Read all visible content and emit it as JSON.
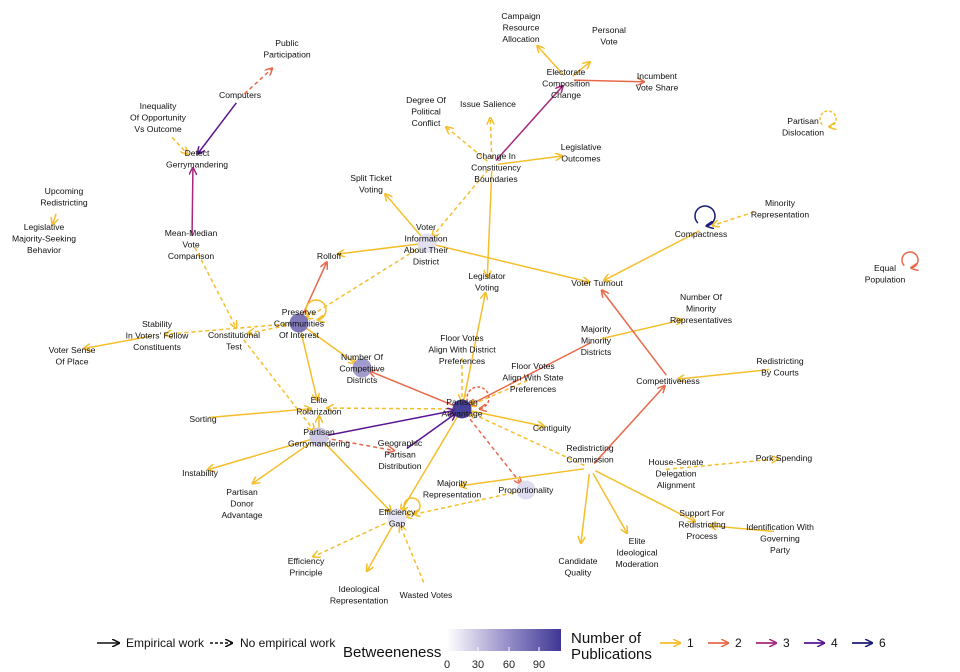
{
  "colors": {
    "pub_1": "#F5BE2B",
    "pub_2": "#E8694A",
    "pub_3": "#A6287E",
    "pub_4": "#5A1593",
    "pub_6": "#1B1B75",
    "betweenness_low": "#F2F0FA",
    "betweenness_high": "#3E3795"
  },
  "nodes": [
    {
      "id": "public-participation",
      "label": [
        "Public",
        "Participation"
      ]
    },
    {
      "id": "computers",
      "label": [
        "Computers"
      ]
    },
    {
      "id": "inequality",
      "label": [
        "Inequality",
        "Of Opportunity",
        "Vs Outcome"
      ]
    },
    {
      "id": "detect-gerrymandering",
      "label": [
        "Detect",
        "Gerrymandering"
      ]
    },
    {
      "id": "upcoming-redistricting",
      "label": [
        "Upcoming",
        "Redistricting"
      ]
    },
    {
      "id": "legislative-majority",
      "label": [
        "Legislative",
        "Majority-Seeking",
        "Behavior"
      ]
    },
    {
      "id": "mean-median",
      "label": [
        "Mean-Median",
        "Vote",
        "Comparison"
      ]
    },
    {
      "id": "campaign-resource",
      "label": [
        "Campaign",
        "Resource",
        "Allocation"
      ]
    },
    {
      "id": "personal-vote",
      "label": [
        "Personal",
        "Vote"
      ]
    },
    {
      "id": "electorate-composition",
      "label": [
        "Electorate",
        "Composition",
        "Change"
      ]
    },
    {
      "id": "incumbent-vote-share",
      "label": [
        "Incumbent",
        "Vote Share"
      ]
    },
    {
      "id": "partisan-dislocation",
      "label": [
        "Partisan",
        "Dislocation"
      ]
    },
    {
      "id": "degree-political-conflict",
      "label": [
        "Degree Of",
        "Political",
        "Conflict"
      ]
    },
    {
      "id": "issue-salience",
      "label": [
        "Issue Salience"
      ]
    },
    {
      "id": "change-constituency",
      "label": [
        "Change In",
        "Constituency",
        "Boundaries"
      ]
    },
    {
      "id": "legislative-outcomes",
      "label": [
        "Legislative",
        "Outcomes"
      ]
    },
    {
      "id": "split-ticket",
      "label": [
        "Split Ticket",
        "Voting"
      ]
    },
    {
      "id": "voter-information",
      "label": [
        "Voter",
        "Information",
        "About Their",
        "District"
      ]
    },
    {
      "id": "minority-representation",
      "label": [
        "Minority",
        "Representation"
      ]
    },
    {
      "id": "compactness",
      "label": [
        "Compactness"
      ]
    },
    {
      "id": "equal-population",
      "label": [
        "Equal",
        "Population"
      ]
    },
    {
      "id": "rolloff",
      "label": [
        "Rolloff"
      ]
    },
    {
      "id": "legislator-voting",
      "label": [
        "Legislator",
        "Voting"
      ]
    },
    {
      "id": "voter-turnout",
      "label": [
        "Voter Turnout"
      ]
    },
    {
      "id": "number-minority-reps",
      "label": [
        "Number Of",
        "Minority",
        "Representatives"
      ]
    },
    {
      "id": "preserve-communities",
      "label": [
        "Preserve",
        "Communities",
        "Of Interest"
      ]
    },
    {
      "id": "stability",
      "label": [
        "Stability",
        "In Voters' Fellow",
        "Constituents"
      ]
    },
    {
      "id": "constitutional-test",
      "label": [
        "Constitutional",
        "Test"
      ]
    },
    {
      "id": "voter-sense-place",
      "label": [
        "Voter Sense",
        "Of Place"
      ]
    },
    {
      "id": "majority-minority",
      "label": [
        "Majority",
        "Minority",
        "Districts"
      ]
    },
    {
      "id": "floor-votes-district",
      "label": [
        "Floor Votes",
        "Align With District",
        "Preferences"
      ]
    },
    {
      "id": "number-competitive",
      "label": [
        "Number Of",
        "Competitive",
        "Districts"
      ]
    },
    {
      "id": "floor-votes-state",
      "label": [
        "Floor Votes",
        "Align With State",
        "Preferences"
      ]
    },
    {
      "id": "redistricting-courts",
      "label": [
        "Redistricting",
        "By Courts"
      ]
    },
    {
      "id": "competitiveness",
      "label": [
        "Competitiveness"
      ]
    },
    {
      "id": "sorting",
      "label": [
        "Sorting"
      ]
    },
    {
      "id": "elite-polarization",
      "label": [
        "Elite",
        "Polarization"
      ]
    },
    {
      "id": "partisan-advantage",
      "label": [
        "Partisan",
        "Advantage"
      ]
    },
    {
      "id": "contiguity",
      "label": [
        "Contiguity"
      ]
    },
    {
      "id": "partisan-gerrymandering",
      "label": [
        "Partisan",
        "Gerrymandering"
      ]
    },
    {
      "id": "geographic-partisan",
      "label": [
        "Geographic",
        "Partisan",
        "Distribution"
      ]
    },
    {
      "id": "house-senate",
      "label": [
        "House-Senate",
        "Delegation",
        "Alignment"
      ]
    },
    {
      "id": "pork-spending",
      "label": [
        "Pork Spending"
      ]
    },
    {
      "id": "redistricting-commission",
      "label": [
        "Redistricting",
        "Commission"
      ]
    },
    {
      "id": "instability",
      "label": [
        "Instability"
      ]
    },
    {
      "id": "majority-representation",
      "label": [
        "Majority",
        "Representation"
      ]
    },
    {
      "id": "proportionality",
      "label": [
        "Proportionality"
      ]
    },
    {
      "id": "partisan-donor",
      "label": [
        "Partisan",
        "Donor",
        "Advantage"
      ]
    },
    {
      "id": "efficiency-gap",
      "label": [
        "Efficiency",
        "Gap"
      ]
    },
    {
      "id": "support-redistricting",
      "label": [
        "Support For",
        "Redistricting",
        "Process"
      ]
    },
    {
      "id": "identification-party",
      "label": [
        "Identification With",
        "Governing",
        "Party"
      ]
    },
    {
      "id": "elite-ideological",
      "label": [
        "Elite",
        "Ideological",
        "Moderation"
      ]
    },
    {
      "id": "candidate-quality",
      "label": [
        "Candidate",
        "Quality"
      ]
    },
    {
      "id": "efficiency-principle",
      "label": [
        "Efficiency",
        "Principle"
      ]
    },
    {
      "id": "ideological-representation",
      "label": [
        "Ideological",
        "Representation"
      ]
    },
    {
      "id": "wasted-votes",
      "label": [
        "Wasted Votes"
      ]
    }
  ],
  "betweenness": [
    {
      "node": "partisan-advantage",
      "value": 100
    },
    {
      "node": "preserve-communities",
      "value": 68
    },
    {
      "node": "number-competitive",
      "value": 48
    },
    {
      "node": "partisan-gerrymandering",
      "value": 22
    },
    {
      "node": "voter-information",
      "value": 10
    },
    {
      "node": "proportionality",
      "value": 12
    },
    {
      "node": "efficiency-gap",
      "value": 6
    }
  ],
  "legend": {
    "empirical_label": "Empirical work",
    "no_empirical_label": "No empirical work",
    "betweenness_title": "Betweeneness",
    "betweenness_ticks": [
      "0",
      "30",
      "60",
      "90"
    ],
    "publications_title": [
      "Number of",
      "Publications"
    ],
    "publications_levels": [
      "1",
      "2",
      "3",
      "4",
      "6"
    ]
  }
}
